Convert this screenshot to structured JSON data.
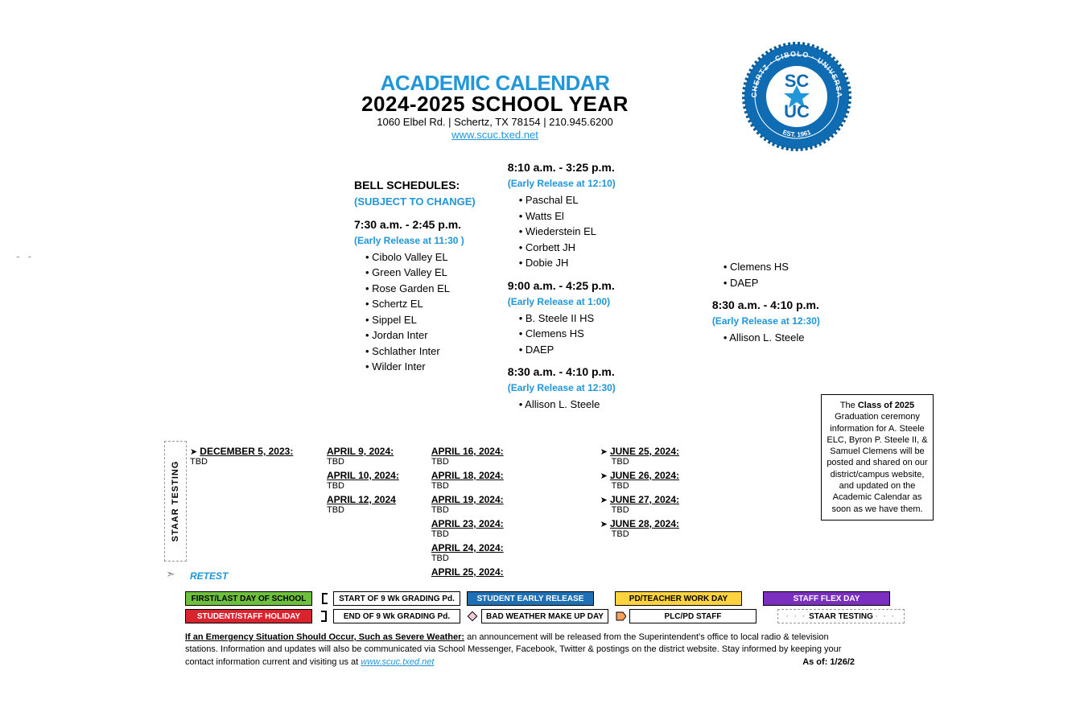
{
  "header": {
    "title1": "ACADEMIC CALENDAR",
    "title2": "2024-2025 SCHOOL YEAR",
    "address": "1060 Elbel Rd.  |  Schertz, TX 78154  |  210.945.6200",
    "url": "www.scuc.txed.net",
    "seal_text_top": "SCHERTZ · CIBOLO · UNIVERSAL",
    "seal_text_bot": "CITY ISD",
    "seal_center": "SCUC",
    "seal_est": "EST. 1961"
  },
  "bell": {
    "heading": "BELL SCHEDULES:",
    "subject": "(SUBJECT TO CHANGE)",
    "blocks": [
      {
        "time": "7:30 a.m. - 2:45 p.m.",
        "early": "(Early Release at 11:30 )",
        "schools": [
          "Cibolo Valley EL",
          "Green Valley EL",
          "Rose Garden EL",
          "Schertz EL",
          "Sippel EL",
          "Jordan Inter",
          "Schlather Inter",
          "Wilder Inter"
        ]
      },
      {
        "time": "8:10 a.m. - 3:25 p.m.",
        "early": "(Early Release at 12:10)",
        "schools": [
          "Paschal EL",
          "Watts El",
          "Wiederstein EL",
          "Corbett JH",
          "Dobie JH"
        ]
      },
      {
        "time": "9:00 a.m. - 4:25 p.m.",
        "early": "(Early Release at 1:00)",
        "schools": [
          "B. Steele II HS",
          "Clemens HS",
          "DAEP"
        ]
      },
      {
        "time": "8:30 a.m. - 4:10 p.m.",
        "early": "(Early Release at 12:30)",
        "schools": [
          "Allison L. Steele"
        ]
      },
      {
        "time": "",
        "early": "",
        "schools": [
          "Clemens HS",
          "DAEP"
        ]
      },
      {
        "time": "8:30 a.m. - 4:10 p.m.",
        "early": "(Early Release at 12:30)",
        "schools": [
          "Allison L. Steele"
        ]
      }
    ]
  },
  "gradbox": {
    "text_pre": "The ",
    "text_bold": "Class of 2025",
    "text_post": " Graduation ceremony information for A. Steele ELC, Byron P. Steele II, & Samuel Clemens will be posted and shared on our district/campus website, and updated on the Academic Calendar as soon as we have them."
  },
  "staar": {
    "label": "STAAR TESTING",
    "retest": "RETEST",
    "cols": [
      [
        {
          "d": "DECEMBER 5, 2023:",
          "t": "TBD",
          "arrow": true
        }
      ],
      [
        {
          "d": "APRIL 9, 2024:",
          "t": "TBD"
        },
        {
          "d": "APRIL 10, 2024:",
          "t": "TBD"
        },
        {
          "d": "APRIL 12, 2024",
          "t": "TBD"
        }
      ],
      [
        {
          "d": "APRIL 16, 2024:",
          "t": "TBD"
        },
        {
          "d": "APRIL 18, 2024:",
          "t": "TBD"
        },
        {
          "d": "APRIL 19, 2024:",
          "t": "TBD"
        },
        {
          "d": "APRIL 23, 2024:",
          "t": "TBD"
        },
        {
          "d": "APRIL 24, 2024:",
          "t": "TBD"
        },
        {
          "d": "APRIL 25, 2024:",
          "t": ""
        }
      ],
      [
        {
          "d": "JUNE 25, 2024:",
          "t": "TBD",
          "arrow": true
        },
        {
          "d": "JUNE 26, 2024:",
          "t": "TBD",
          "arrow": true
        },
        {
          "d": "JUNE 27, 2024:",
          "t": "TBD",
          "arrow": true
        },
        {
          "d": "JUNE 28, 2024:",
          "t": "TBD",
          "arrow": true
        }
      ]
    ]
  },
  "legend": {
    "items": [
      [
        {
          "label": "FIRST/LAST DAY OF SCHOOL",
          "bg": "#6fbf3f",
          "fg": "#000"
        },
        {
          "label": "STUDENT/STAFF HOLIDAY",
          "bg": "#d9232e",
          "fg": "#fff"
        }
      ],
      [
        {
          "label": "START OF 9 Wk GRADING Pd.",
          "bg": "#fff",
          "fg": "#000",
          "icon": "bracket-start"
        },
        {
          "label": "END OF 9 Wk GRADING Pd.",
          "bg": "#fff",
          "fg": "#000",
          "icon": "bracket-end"
        }
      ],
      [
        {
          "label": "STUDENT EARLY RELEASE",
          "bg": "#1e6fb3",
          "fg": "#fff"
        },
        {
          "label": "BAD WEATHER MAKE UP DAY",
          "bg": "#fff",
          "fg": "#000",
          "icon": "diamond"
        }
      ],
      [
        {
          "label": "PD/TEACHER WORK DAY",
          "bg": "#ffd23f",
          "fg": "#000"
        },
        {
          "label": "PLC/PD STAFF",
          "bg": "#fff",
          "fg": "#000",
          "icon": "pentagon"
        }
      ],
      [
        {
          "label": "STAFF FLEX DAY",
          "bg": "#7b2fbf",
          "fg": "#fff"
        },
        {
          "label": "STAAR TESTING",
          "bg": "#fff",
          "fg": "#000",
          "icon": "dots"
        }
      ]
    ]
  },
  "footer": {
    "bold": "If an Emergency Situation Should Occur, Such as Severe Weather:",
    "text": "  an announcement will be released from the Superintendent's office to local radio & television stations. Information and updates will also be communicated via School Messenger, Facebook, Twitter & postings on the district website.  Stay informed by keeping your contact information current and visiting us at  ",
    "link": "www.scuc.txed.net",
    "asof": "As of:  1/26/2"
  },
  "colors": {
    "brand_blue": "#2196d8",
    "seal_ring": "#0f6cb3",
    "seal_inner": "#0f6cb3"
  }
}
